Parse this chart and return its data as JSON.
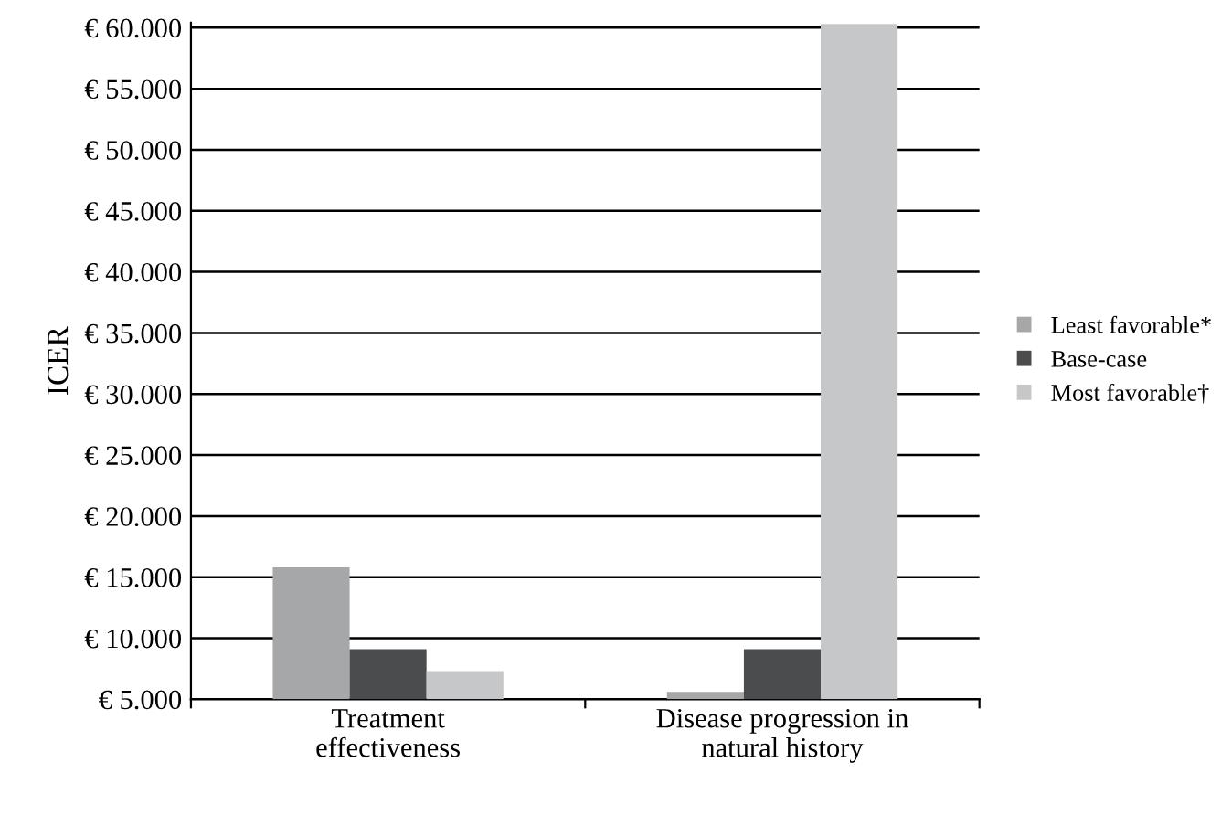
{
  "chart_data": {
    "type": "bar",
    "ylabel": "ICER",
    "categories": [
      "Treatment\neffectiveness",
      "Disease progression in\nnatural history"
    ],
    "series": [
      {
        "name": "Least favorable*",
        "color": "#a6a7a9",
        "values": [
          15800,
          5600
        ]
      },
      {
        "name": "Base-case",
        "color": "#4b4c4e",
        "values": [
          9100,
          9100
        ]
      },
      {
        "name": "Most favorable†",
        "color": "#c6c7c8",
        "values": [
          7300,
          60300
        ]
      }
    ],
    "ylim": [
      5000,
      60400
    ],
    "yticks": [
      {
        "value": 5000,
        "label": "€ 5.000"
      },
      {
        "value": 10000,
        "label": "€ 10.000"
      },
      {
        "value": 15000,
        "label": "€ 15.000"
      },
      {
        "value": 20000,
        "label": "€ 20.000"
      },
      {
        "value": 25000,
        "label": "€ 25.000"
      },
      {
        "value": 30000,
        "label": "€ 30.000"
      },
      {
        "value": 35000,
        "label": "€ 35.000"
      },
      {
        "value": 40000,
        "label": "€ 40.000"
      },
      {
        "value": 45000,
        "label": "€ 45.000"
      },
      {
        "value": 50000,
        "label": "€ 50.000"
      },
      {
        "value": 55000,
        "label": "€ 55.000"
      },
      {
        "value": 60000,
        "label": "€ 60.000"
      }
    ],
    "grid": "y",
    "legend": "right"
  }
}
